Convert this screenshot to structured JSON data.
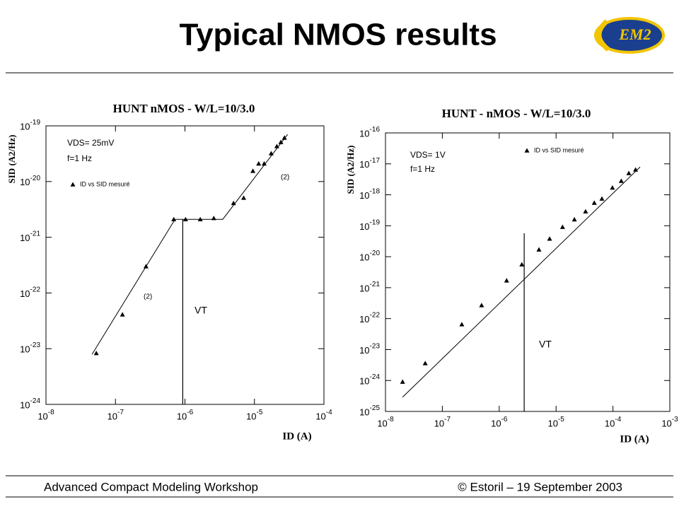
{
  "header": {
    "title": "Typical NMOS results",
    "logo": "EM2"
  },
  "footer": {
    "left": "Advanced Compact Modeling Workshop",
    "right": "© Estoril – 19 September 2003"
  },
  "chart_data": [
    {
      "type": "scatter",
      "title": "HUNT nMOS - W/L=10/3.0",
      "x_label": "ID (A)",
      "y_label": "SID (A2/Hz)",
      "log_x": true,
      "log_y": true,
      "xlim": [
        1e-08,
        0.0001
      ],
      "ylim": [
        1e-24,
        1e-19
      ],
      "xticks": [
        {
          "value": 1e-08,
          "label": "10-8"
        },
        {
          "value": 1e-07,
          "label": "10-7"
        },
        {
          "value": 1e-06,
          "label": "10-6"
        },
        {
          "value": 1e-05,
          "label": "10-5"
        },
        {
          "value": 0.0001,
          "label": "10-4"
        }
      ],
      "yticks": [
        {
          "value": 1e-24,
          "label": "10-24"
        },
        {
          "value": 1e-23,
          "label": "10-23"
        },
        {
          "value": 1e-22,
          "label": "10-22"
        },
        {
          "value": 1e-21,
          "label": "10-21"
        },
        {
          "value": 1e-20,
          "label": "10-20"
        },
        {
          "value": 1e-19,
          "label": "10-19"
        }
      ],
      "series": [
        {
          "name": "ID vs SID mesuré",
          "color": "#000000",
          "x": [
            5.3e-08,
            1.26e-07,
            2.75e-07,
            6.9e-07,
            1.02e-06,
            1.66e-06,
            2.6e-06,
            5e-06,
            7e-06,
            9.5e-06,
            1.15e-05,
            1.38e-05,
            1.74e-05,
            2.1e-05,
            2.4e-05,
            2.7e-05
          ],
          "values": [
            8.3e-24,
            4.1e-23,
            3e-22,
            2.1e-21,
            2.1e-21,
            2.1e-21,
            2.2e-21,
            4.1e-21,
            5.1e-21,
            1.55e-20,
            2.1e-20,
            2.1e-20,
            3.2e-20,
            4.3e-20,
            5.1e-20,
            6.1e-20
          ]
        }
      ],
      "fit_line": {
        "x": [
          4.6e-08,
          7.2e-07,
          3.5e-06,
          3e-05
        ],
        "values": [
          7.9e-24,
          2.1e-21,
          2.1e-21,
          7e-20
        ]
      },
      "vt_line": {
        "x": 9.3e-07,
        "y_top": 2.1e-21,
        "label": "VT"
      },
      "conditions": [
        "VDS= 25mV",
        "f=1 Hz"
      ],
      "slope_labels": [
        "(2)",
        "(2)"
      ]
    },
    {
      "type": "scatter",
      "title": "HUNT - nMOS - W/L=10/3.0",
      "x_label": "ID (A)",
      "y_label": "SID (A2/Hz)",
      "log_x": true,
      "log_y": true,
      "xlim": [
        1e-08,
        0.001
      ],
      "ylim": [
        1e-25,
        1e-16
      ],
      "xticks": [
        {
          "value": 1e-08,
          "label": "10-8"
        },
        {
          "value": 1e-07,
          "label": "10-7"
        },
        {
          "value": 1e-06,
          "label": "10-6"
        },
        {
          "value": 1e-05,
          "label": "10-5"
        },
        {
          "value": 0.0001,
          "label": "10-4"
        },
        {
          "value": 0.001,
          "label": "10-3"
        }
      ],
      "yticks": [
        {
          "value": 1e-25,
          "label": "10-25"
        },
        {
          "value": 1e-24,
          "label": "10-24"
        },
        {
          "value": 1e-23,
          "label": "10-23"
        },
        {
          "value": 1e-22,
          "label": "10-22"
        },
        {
          "value": 1e-21,
          "label": "10-21"
        },
        {
          "value": 1e-20,
          "label": "10-20"
        },
        {
          "value": 1e-19,
          "label": "10-19"
        },
        {
          "value": 1e-18,
          "label": "10-18"
        },
        {
          "value": 1e-17,
          "label": "10-17"
        },
        {
          "value": 1e-16,
          "label": "10-16"
        }
      ],
      "series": [
        {
          "name": "ID vs SID mesuré",
          "color": "#000000",
          "x": [
            2e-08,
            5e-08,
            2.2e-07,
            4.9e-07,
            1.35e-06,
            2.5e-06,
            5e-06,
            7.7e-06,
            1.3e-05,
            2.1e-05,
            3.3e-05,
            4.7e-05,
            6.4e-05,
            9.8e-05,
            0.00014,
            0.00019,
            0.00025
          ],
          "values": [
            9.1e-25,
            3.6e-24,
            6.5e-23,
            2.7e-22,
            1.7e-21,
            5.6e-21,
            1.7e-20,
            3.8e-20,
            9.1e-20,
            1.6e-19,
            2.9e-19,
            5.5e-19,
            7.5e-19,
            1.7e-18,
            2.8e-18,
            5e-18,
            6.5e-18
          ]
        }
      ],
      "fit_line": {
        "x": [
          2e-08,
          0.0003
        ],
        "values": [
          2.9e-25,
          7.9e-18
        ]
      },
      "vt_line": {
        "x": 2.75e-06,
        "y_top": 5.7e-20,
        "label": "VT"
      },
      "conditions": [
        "VDS= 1V",
        "f=1 Hz"
      ]
    }
  ]
}
